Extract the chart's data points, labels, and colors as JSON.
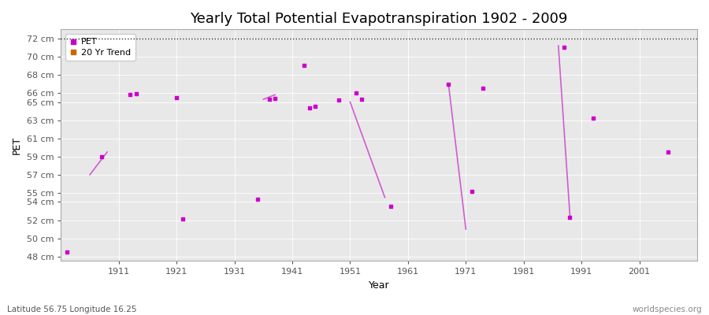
{
  "title": "Yearly Total Potential Evapotranspiration 1902 - 2009",
  "xlabel": "Year",
  "ylabel": "PET",
  "xlim": [
    1901,
    2011
  ],
  "ylim": [
    47.5,
    73.0
  ],
  "yticks": [
    48,
    50,
    52,
    54,
    55,
    57,
    59,
    61,
    63,
    65,
    66,
    68,
    70,
    72
  ],
  "ytick_labels": [
    "48 cm",
    "50 cm",
    "52 cm",
    "54 cm",
    "55 cm",
    "57 cm",
    "59 cm",
    "61 cm",
    "63 cm",
    "65 cm",
    "66 cm",
    "68 cm",
    "70 cm",
    "72 cm"
  ],
  "xticks": [
    1911,
    1921,
    1931,
    1941,
    1951,
    1961,
    1971,
    1981,
    1991,
    2001
  ],
  "pet_color": "#cc00cc",
  "trend_color": "#cc6600",
  "fig_bg_color": "#ffffff",
  "plot_bg_color": "#e8e8e8",
  "grid_color": "#ffffff",
  "pet_data": [
    [
      1902,
      48.5
    ],
    [
      1908,
      59.0
    ],
    [
      1913,
      65.8
    ],
    [
      1914,
      65.9
    ],
    [
      1921,
      65.5
    ],
    [
      1922,
      52.1
    ],
    [
      1935,
      54.3
    ],
    [
      1937,
      65.3
    ],
    [
      1938,
      65.4
    ],
    [
      1943,
      69.0
    ],
    [
      1944,
      64.4
    ],
    [
      1945,
      64.5
    ],
    [
      1949,
      65.2
    ],
    [
      1952,
      66.0
    ],
    [
      1953,
      65.3
    ],
    [
      1958,
      53.5
    ],
    [
      1968,
      67.0
    ],
    [
      1972,
      55.2
    ],
    [
      1974,
      66.5
    ],
    [
      1988,
      71.0
    ],
    [
      1989,
      52.3
    ],
    [
      1993,
      63.2
    ],
    [
      2006,
      59.5
    ]
  ],
  "trend_segments": [
    [
      [
        1906,
        57.0
      ],
      [
        1909,
        59.5
      ]
    ],
    [
      [
        1936,
        65.3
      ],
      [
        1938,
        65.8
      ]
    ],
    [
      [
        1951,
        65.0
      ],
      [
        1957,
        54.5
      ]
    ],
    [
      [
        1968,
        67.0
      ],
      [
        1971,
        51.0
      ]
    ],
    [
      [
        1987,
        71.2
      ],
      [
        1989,
        52.5
      ]
    ]
  ],
  "trend_line_color": "#cc44cc",
  "legend_pet_label": "PET",
  "legend_trend_label": "20 Yr Trend",
  "bottom_left_text": "Latitude 56.75 Longitude 16.25",
  "bottom_right_text": "worldspecies.org",
  "title_fontsize": 13,
  "axis_label_fontsize": 9,
  "tick_fontsize": 8,
  "dashed_line_y": 72
}
